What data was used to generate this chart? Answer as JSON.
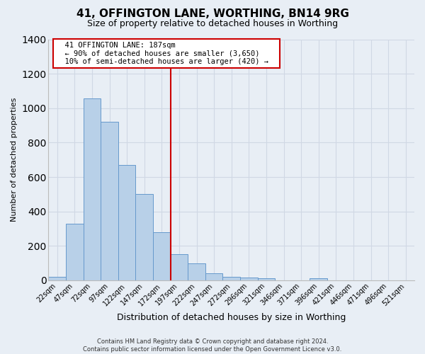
{
  "title": "41, OFFINGTON LANE, WORTHING, BN14 9RG",
  "subtitle": "Size of property relative to detached houses in Worthing",
  "xlabel": "Distribution of detached houses by size in Worthing",
  "ylabel": "Number of detached properties",
  "bar_labels": [
    "22sqm",
    "47sqm",
    "72sqm",
    "97sqm",
    "122sqm",
    "147sqm",
    "172sqm",
    "197sqm",
    "222sqm",
    "247sqm",
    "272sqm",
    "296sqm",
    "321sqm",
    "346sqm",
    "371sqm",
    "396sqm",
    "421sqm",
    "446sqm",
    "471sqm",
    "496sqm",
    "521sqm"
  ],
  "bar_values": [
    20,
    330,
    1055,
    920,
    670,
    500,
    280,
    150,
    100,
    42,
    22,
    18,
    11,
    0,
    0,
    10,
    0,
    0,
    0,
    0,
    0
  ],
  "bar_color": "#b8d0e8",
  "bar_edge_color": "#6699cc",
  "vline_index": 7,
  "vline_color": "#cc0000",
  "ylim": [
    0,
    1400
  ],
  "yticks": [
    0,
    200,
    400,
    600,
    800,
    1000,
    1200,
    1400
  ],
  "annotation_title": "41 OFFINGTON LANE: 187sqm",
  "annotation_line1": "← 90% of detached houses are smaller (3,650)",
  "annotation_line2": "10% of semi-detached houses are larger (420) →",
  "annotation_box_color": "#ffffff",
  "annotation_box_edge": "#cc0000",
  "footer_line1": "Contains HM Land Registry data © Crown copyright and database right 2024.",
  "footer_line2": "Contains public sector information licensed under the Open Government Licence v3.0.",
  "background_color": "#e8eef5",
  "grid_color": "#d0d8e4",
  "title_fontsize": 11,
  "subtitle_fontsize": 9,
  "xlabel_fontsize": 9,
  "ylabel_fontsize": 8,
  "tick_fontsize": 7,
  "footer_fontsize": 6,
  "annotation_fontsize": 7.5
}
